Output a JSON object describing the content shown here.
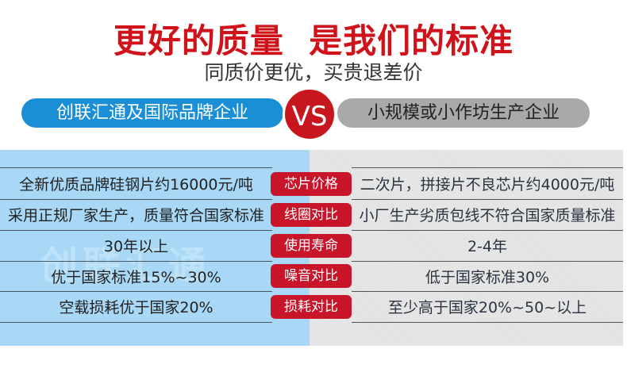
{
  "header": {
    "title": "更好的质量  是我们的标准",
    "subtitle": "同质价更优，买贵退差价"
  },
  "compare": {
    "left_label": "创联汇通及国际品牌企业",
    "vs": "VS",
    "right_label": "小规模或小作坊生产企业"
  },
  "watermark": "创联汇通",
  "colors": {
    "red": "#c8152a",
    "blue": "#1a8fd6",
    "left_bg": "#a8d8f5",
    "right_bg": "#e1e1e1"
  },
  "rows": [
    {
      "left": "全新优质品牌硅钢片约16000元/吨",
      "label": "芯片价格",
      "right": "二次片，拼接片不良芯片约4000元/吨"
    },
    {
      "left": "采用正规厂家生产，质量符合国家标准",
      "label": "线圈对比",
      "right": "小厂生产劣质包线不符合国家质量标准"
    },
    {
      "left": "30年以上",
      "label": "使用寿命",
      "right": "2-4年"
    },
    {
      "left": "优于国家标准15%~30%",
      "label": "噪音对比",
      "right": "低于国家标准30%"
    },
    {
      "left": "空载损耗优于国家20%",
      "label": "损耗对比",
      "right": "至少高于国家20%~50~以上"
    }
  ]
}
